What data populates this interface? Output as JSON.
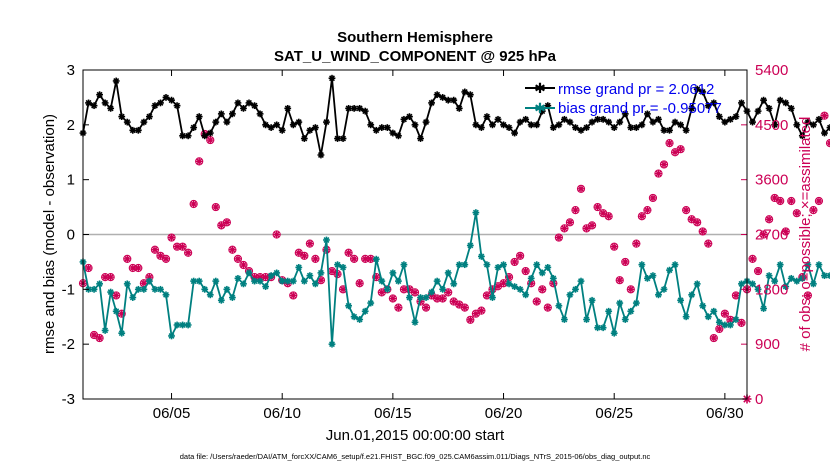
{
  "chart_data": {
    "type": "line",
    "title": "Southern Hemisphere",
    "subtitle": "SAT_U_WIND_COMPONENT @ 925 hPa",
    "xlabel": "Jun.01,2015 00:00:00 start",
    "ylabel": "rmse and bias (model - observation)",
    "y2label": "# of obs: o=possible; ×=assimilated",
    "xlim": [
      1.0,
      31.0
    ],
    "ylim": [
      -3,
      3
    ],
    "y2lim": [
      0,
      5400
    ],
    "x_ticks": [
      5,
      10,
      15,
      20,
      25,
      30
    ],
    "x_tick_labels": [
      "06/05",
      "06/10",
      "06/15",
      "06/20",
      "06/25",
      "06/30"
    ],
    "y_ticks": [
      -3,
      -2,
      -1,
      0,
      1,
      2,
      3
    ],
    "y_tick_labels": [
      "-3",
      "-2",
      "-1",
      "0",
      "1",
      "2",
      "3"
    ],
    "y2_ticks": [
      0,
      900,
      1800,
      2700,
      3600,
      4500,
      5400
    ],
    "y2_tick_labels": [
      "0",
      "900",
      "1800",
      "2700",
      "3600",
      "4500",
      "5400"
    ],
    "x_step_days": 0.25,
    "x_start_day": 1.0,
    "zero_line": 0,
    "legend_location": "top-right",
    "footer": "data file: /Users/raeder/DAI/ATM_forcXX/CAM6_setup/f.e21.FHIST_BGC.f09_025.CAM6assim.011/Diags_NTrS_2015-06/obs_diag_output.nc",
    "colors": {
      "rmse": "#000000",
      "bias": "#008080",
      "obs": "#cc0055",
      "zero": "#b0b0b0"
    },
    "series": [
      {
        "name": "rmse grand pr = 2.0612",
        "axis": "left",
        "marker": "star",
        "values": [
          1.85,
          2.4,
          2.35,
          2.55,
          2.4,
          2.3,
          2.8,
          2.15,
          2.05,
          1.9,
          1.9,
          2.05,
          2.15,
          2.35,
          2.4,
          2.5,
          2.45,
          2.35,
          1.8,
          1.8,
          1.95,
          2.15,
          1.8,
          1.85,
          2.05,
          2.2,
          2.05,
          2.2,
          2.4,
          2.3,
          2.4,
          2.35,
          2.2,
          2.0,
          1.95,
          2.0,
          1.9,
          2.3,
          2.0,
          2.05,
          1.75,
          1.9,
          1.95,
          1.45,
          2.05,
          2.85,
          1.75,
          1.75,
          2.3,
          2.3,
          2.3,
          2.25,
          2.0,
          1.9,
          1.95,
          1.95,
          1.85,
          1.8,
          2.1,
          2.15,
          2.0,
          1.75,
          2.05,
          2.4,
          2.55,
          2.5,
          2.45,
          2.45,
          2.3,
          2.6,
          2.55,
          2.0,
          1.95,
          2.15,
          2.0,
          2.1,
          2.0,
          1.95,
          1.85,
          2.05,
          2.1,
          2.0,
          2.0,
          2.25,
          2.35,
          1.95,
          2.0,
          2.1,
          2.05,
          1.95,
          1.9,
          1.95,
          2.05,
          2.1,
          2.1,
          2.05,
          1.95,
          2.05,
          2.2,
          1.95,
          1.95,
          2.0,
          2.2,
          2.05,
          2.1,
          1.9,
          1.9,
          2.05,
          2.0,
          1.9,
          2.3,
          2.65,
          2.6,
          2.35,
          2.4,
          2.15,
          2.05,
          2.1,
          2.15,
          2.4,
          2.25,
          2.05,
          2.25,
          2.45,
          2.3,
          2.0,
          2.45,
          2.4,
          2.3,
          2.0,
          1.8,
          2.05,
          2.0,
          2.1,
          1.85,
          1.95,
          1.75,
          2.0,
          1.8,
          1.65,
          2.0,
          1.75,
          1.45,
          1.75,
          1.65,
          1.5,
          1.65,
          1.85,
          1.6,
          2.1,
          2.05
        ]
      },
      {
        "name": "bias grand pr = -0.95077",
        "axis": "left",
        "marker": "star",
        "values": [
          -0.5,
          -1.0,
          -1.0,
          -0.9,
          -1.75,
          -1.05,
          -1.4,
          -1.8,
          -0.9,
          -1.15,
          -1.0,
          -1.0,
          -0.85,
          -1.0,
          -1.0,
          -1.1,
          -1.85,
          -1.65,
          -1.65,
          -1.65,
          -0.85,
          -0.85,
          -1.0,
          -1.1,
          -0.85,
          -1.2,
          -1.0,
          -1.15,
          -0.8,
          -0.9,
          -0.7,
          -0.85,
          -0.85,
          -0.95,
          -0.75,
          -0.7,
          -0.85,
          -0.85,
          -0.85,
          -0.6,
          -0.85,
          -0.75,
          -0.9,
          -0.7,
          -0.1,
          -2.0,
          -0.55,
          -0.6,
          -1.3,
          -1.5,
          -1.55,
          -1.4,
          -1.25,
          -0.45,
          -0.85,
          -1.0,
          -0.7,
          -0.85,
          -0.55,
          -1.15,
          -1.6,
          -1.15,
          -1.15,
          -1.05,
          -0.85,
          -1.0,
          -0.7,
          -0.9,
          -0.55,
          -0.55,
          -0.2,
          0.4,
          -0.4,
          -0.55,
          -1.15,
          -0.6,
          -0.55,
          -0.9,
          -0.95,
          -1.0,
          -1.1,
          -0.8,
          -0.55,
          -0.7,
          -0.6,
          -0.8,
          -1.3,
          -1.55,
          -1.1,
          -1.0,
          -0.85,
          -1.55,
          -1.2,
          -1.7,
          -1.7,
          -1.4,
          -1.8,
          -1.25,
          -1.55,
          -1.4,
          -1.25,
          -0.55,
          -0.8,
          -0.75,
          -1.1,
          -1.0,
          -0.65,
          -0.55,
          -1.2,
          -1.5,
          -1.1,
          -0.9,
          -1.3,
          -1.5,
          -1.4,
          -1.6,
          -1.65,
          -1.65,
          -1.55,
          -0.9,
          -0.85,
          -0.9,
          -1.0,
          -1.35,
          -0.75,
          -0.85,
          -0.55,
          -0.95,
          -0.8,
          -0.85,
          -0.8,
          -0.55,
          -0.9,
          -0.55,
          -0.75,
          -0.75,
          -0.85,
          -0.9,
          -0.85,
          -0.65,
          -0.45,
          -1.1,
          -0.55,
          -0.3,
          -0.8,
          -0.2,
          -0.15,
          -0.45,
          -0.85,
          -1.05,
          -1.1
        ]
      },
      {
        "name": "assimilated",
        "axis": "right",
        "marker": "asterisk",
        "values": [
          1900,
          2150,
          1050,
          1000,
          2000,
          2000,
          1700,
          1400,
          2300,
          2150,
          2150,
          1900,
          2000,
          2450,
          2350,
          2300,
          2650,
          2500,
          2500,
          2400,
          3200,
          3900,
          4350,
          4250,
          3150,
          2850,
          2900,
          2450,
          2300,
          2200,
          2100,
          2000,
          2000,
          2000,
          2000,
          2700,
          1950,
          1900,
          1700,
          2400,
          2350,
          2550,
          2300,
          1950,
          2450,
          2100,
          2050,
          1800,
          2400,
          2300,
          1900,
          2300,
          2300,
          2000,
          1750,
          1800,
          1650,
          1500,
          1800,
          1800,
          1750,
          1600,
          1500,
          1700,
          1650,
          1650,
          1750,
          1600,
          1550,
          1500,
          1300,
          1400,
          1450,
          1700,
          1800,
          1850,
          1900,
          2000,
          2250,
          2350,
          2100,
          1900,
          1600,
          1800,
          1500,
          1900,
          2650,
          2800,
          2900,
          3100,
          3450,
          2800,
          2850,
          3150,
          3050,
          3000,
          2500,
          1950,
          2250,
          1800,
          2550,
          3000,
          3100,
          3300,
          3700,
          3850,
          4200,
          4050,
          4100,
          3100,
          2950,
          2900,
          2750,
          2550,
          1000,
          1150,
          1400,
          1300,
          1700,
          1250,
          1800,
          2300,
          2100,
          2700,
          2950,
          3300,
          3250,
          2750,
          3250,
          3050,
          2000,
          1700,
          3100,
          3250,
          4650,
          4200,
          3800,
          3350,
          3100,
          3850,
          3200,
          3800,
          3500,
          3450,
          3000,
          2750,
          2650,
          2400,
          2500,
          2400,
          2300,
          2250,
          2050
        ]
      },
      {
        "name": "possible",
        "axis": "right",
        "marker": "circle",
        "values": [
          1900,
          2150,
          1050,
          1000,
          2000,
          2000,
          1700,
          1400,
          2300,
          2150,
          2150,
          1900,
          2000,
          2450,
          2350,
          2300,
          2650,
          2500,
          2500,
          2400,
          3200,
          3900,
          4350,
          4250,
          3150,
          2850,
          2900,
          2450,
          2300,
          2200,
          2100,
          2000,
          2000,
          2000,
          2000,
          2700,
          1950,
          1900,
          1700,
          2400,
          2350,
          2550,
          2300,
          1950,
          2450,
          2100,
          2050,
          1800,
          2400,
          2300,
          1900,
          2300,
          2300,
          2000,
          1750,
          1800,
          1650,
          1500,
          1800,
          1800,
          1750,
          1600,
          1500,
          1700,
          1650,
          1650,
          1750,
          1600,
          1550,
          1500,
          1300,
          1400,
          1450,
          1700,
          1800,
          1850,
          1900,
          2000,
          2250,
          2350,
          2100,
          1900,
          1600,
          1800,
          1500,
          1900,
          2650,
          2800,
          2900,
          3100,
          3450,
          2800,
          2850,
          3150,
          3050,
          3000,
          2500,
          1950,
          2250,
          1800,
          2550,
          3000,
          3100,
          3300,
          3700,
          3850,
          4200,
          4050,
          4100,
          3100,
          2950,
          2900,
          2750,
          2550,
          1000,
          1150,
          1400,
          1300,
          1700,
          1250,
          1800,
          2300,
          2100,
          2700,
          2950,
          3300,
          3250,
          2750,
          3250,
          3050,
          2000,
          1700,
          3100,
          3250,
          4650,
          4200,
          3800,
          3350,
          3100,
          3850,
          3200,
          3800,
          3500,
          3450,
          3000,
          2750,
          2650,
          2400,
          2500,
          2400,
          2300,
          2250,
          2050
        ]
      }
    ],
    "right_axis_end_marker": {
      "x": 31.0,
      "value": 0
    }
  }
}
